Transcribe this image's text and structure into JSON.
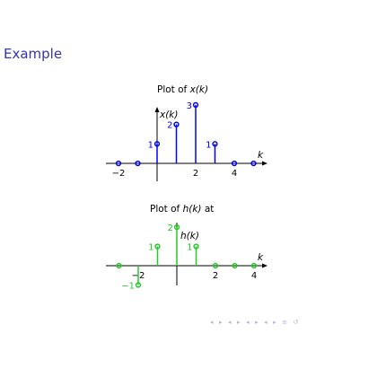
{
  "slide": {
    "title": "Example"
  },
  "plots": {
    "x": {
      "title_prefix": "Plot of ",
      "title_var": "x(k)",
      "ylabel": "x(k)",
      "xlabel": "k",
      "color": "#0000ff",
      "ticks": [
        {
          "k": -2,
          "label": "−2"
        },
        {
          "k": 2,
          "label": "2"
        },
        {
          "k": 4,
          "label": "4"
        }
      ],
      "stems": [
        {
          "k": -2,
          "v": 0
        },
        {
          "k": -1,
          "v": 0
        },
        {
          "k": 0,
          "v": 1
        },
        {
          "k": 1,
          "v": 2
        },
        {
          "k": 2,
          "v": 3
        },
        {
          "k": 3,
          "v": 1
        },
        {
          "k": 4,
          "v": 0
        },
        {
          "k": 5,
          "v": 0
        }
      ],
      "value_labels": [
        {
          "k": 0,
          "v": 1,
          "text": "1"
        },
        {
          "k": 1,
          "v": 2,
          "text": "2"
        },
        {
          "k": 2,
          "v": 3,
          "text": "3"
        },
        {
          "k": 3,
          "v": 1,
          "text": "1"
        }
      ]
    },
    "h": {
      "title_prefix": "Plot of ",
      "title_var": "h(k)",
      "title_suffix": " at",
      "ylabel": "h(k)",
      "xlabel": "k",
      "color": "#22cc22",
      "ticks": [
        {
          "k": -2,
          "label": "−2"
        },
        {
          "k": 2,
          "label": "2"
        },
        {
          "k": 4,
          "label": "4"
        }
      ],
      "stems": [
        {
          "k": -3,
          "v": 0
        },
        {
          "k": -2,
          "v": -1
        },
        {
          "k": -1,
          "v": 1
        },
        {
          "k": 0,
          "v": 2
        },
        {
          "k": 1,
          "v": 1
        },
        {
          "k": 2,
          "v": 0
        },
        {
          "k": 3,
          "v": 0
        },
        {
          "k": 4,
          "v": 0
        }
      ],
      "value_labels": [
        {
          "k": -2,
          "v": -1,
          "text": "−1"
        },
        {
          "k": -1,
          "v": 1,
          "text": "1"
        },
        {
          "k": 0,
          "v": 2,
          "text": "2"
        },
        {
          "k": 1,
          "v": 1,
          "text": "1"
        }
      ]
    }
  },
  "nav": [
    "◂",
    "▸",
    "◂",
    "▸",
    "◂",
    "▸",
    "◂",
    "▸",
    "≡",
    "↺"
  ]
}
